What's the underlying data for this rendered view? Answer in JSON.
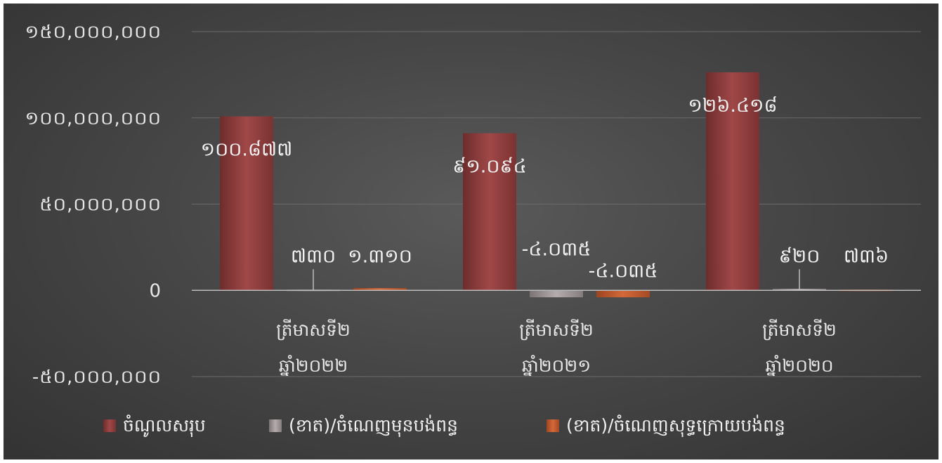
{
  "chart_data": {
    "type": "bar",
    "categories": [
      [
        "ត្រីមាសទី២",
        "ឆ្នាំ២០២២"
      ],
      [
        "ត្រីមាសទី២",
        "ឆ្នាំ២០២១"
      ],
      [
        "ត្រីមាសទី២",
        "ឆ្នាំ២០២០"
      ]
    ],
    "ylim": [
      -50000000,
      150000000
    ],
    "yticks": [
      -50000000,
      0,
      50000000,
      100000000,
      150000000
    ],
    "ytick_labels": [
      "-៥០,០០០,០០០",
      "0",
      "៥០,០០០,០០០",
      "១០០,០០០,០០០",
      "១៥០,០០០,០០០"
    ],
    "grid": true,
    "legend_position": "bottom",
    "series": [
      {
        "name": "ចំណូលសរុប",
        "color": "#8f3e3e",
        "values": [
          100877000,
          91094000,
          126418000
        ],
        "labels": [
          "១០០.៨៧៧",
          "៩១.០៩៤",
          "១២៦.៤១៨"
        ]
      },
      {
        "name": "(ខាត)/ចំណេញមុនបង់ពន្ធ",
        "color": "#a09898",
        "values": [
          730000,
          -4035000,
          920000
        ],
        "labels": [
          "៧៣០",
          "-៤.០៣៥",
          "៩២០"
        ]
      },
      {
        "name": "(ខាត)/ចំណេញសុទ្ធក្រោយបង់ពន្ធ",
        "color": "#c0582e",
        "values": [
          1310000,
          -4035000,
          736000
        ],
        "labels": [
          "១.៣១០",
          "-៤.០៣៥",
          "៧៣៦"
        ]
      }
    ]
  }
}
